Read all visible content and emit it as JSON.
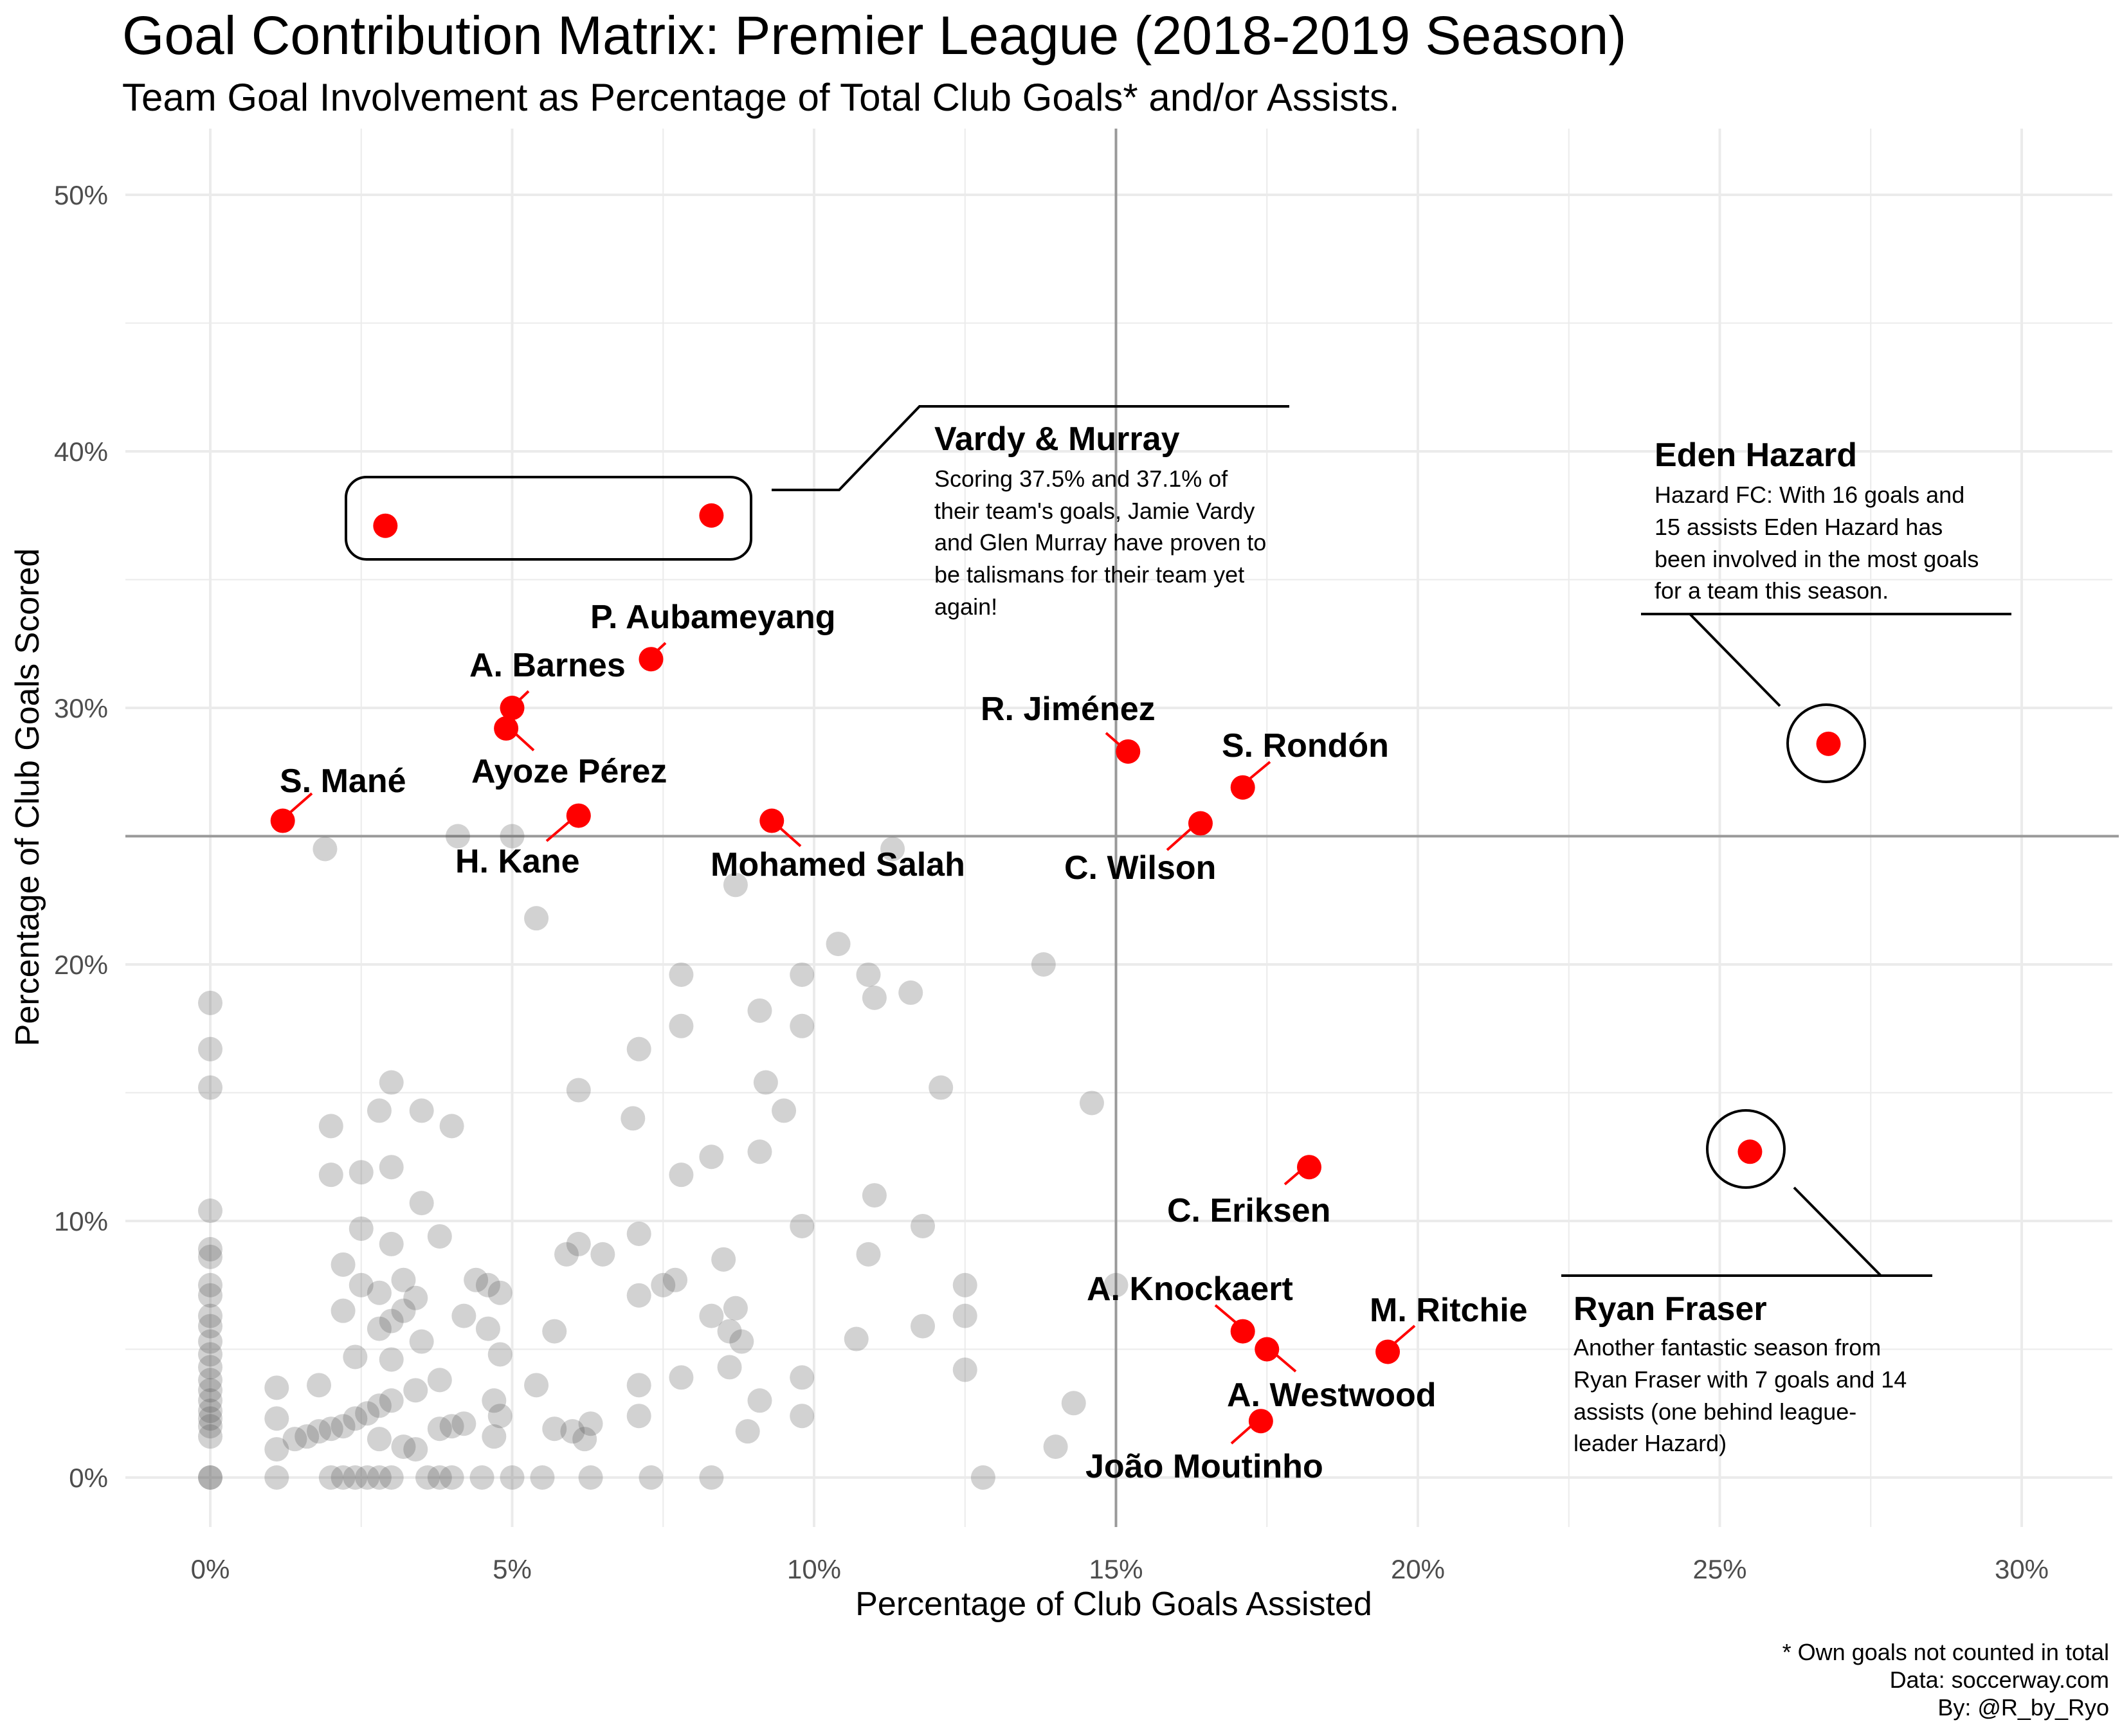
{
  "title": "Goal Contribution Matrix: Premier League (2018-2019 Season)",
  "subtitle": "Team Goal Involvement as Percentage of Total Club Goals* and/or Assists.",
  "caption": [
    "* Own goals not counted in total",
    "Data: soccerway.com",
    "By: @R_by_Ryo"
  ],
  "colors": {
    "highlight": "#ff0000",
    "background_points": "#4d4d4d",
    "grid": "#ebebeb",
    "reference_line": "#999999"
  },
  "chart_data": {
    "type": "scatter",
    "xlabel": "Percentage of Club Goals Assisted",
    "ylabel": "Percentage of Club Goals Scored",
    "xlim": [
      0,
      30
    ],
    "ylim": [
      0,
      50
    ],
    "x_ticks": [
      "0%",
      "5%",
      "10%",
      "15%",
      "20%",
      "25%",
      "30%"
    ],
    "y_ticks": [
      "0%",
      "10%",
      "20%",
      "30%",
      "40%",
      "50%"
    ],
    "reference_lines": {
      "x": 15,
      "y": 25
    },
    "grid": true,
    "legend": "none",
    "highlighted_players": [
      {
        "name": "S. Mané",
        "x": 1.2,
        "y": 25.6
      },
      {
        "name": "A. Barnes",
        "x": 5.0,
        "y": 30.0
      },
      {
        "name": "Ayoze Pérez",
        "x": 4.9,
        "y": 29.2
      },
      {
        "name": "P. Aubameyang",
        "x": 7.3,
        "y": 31.9
      },
      {
        "name": "H. Kane",
        "x": 6.1,
        "y": 25.8
      },
      {
        "name": "Mohamed Salah",
        "x": 9.3,
        "y": 25.6
      },
      {
        "name": "R. Jiménez",
        "x": 15.2,
        "y": 28.3
      },
      {
        "name": "S. Rondón",
        "x": 17.1,
        "y": 26.9
      },
      {
        "name": "C. Wilson",
        "x": 16.4,
        "y": 25.5
      },
      {
        "name": "C. Eriksen",
        "x": 18.2,
        "y": 12.1
      },
      {
        "name": "A. Knockaert",
        "x": 17.1,
        "y": 5.7
      },
      {
        "name": "A. Westwood",
        "x": 17.5,
        "y": 5.0
      },
      {
        "name": "M. Ritchie",
        "x": 19.5,
        "y": 4.9
      },
      {
        "name": "João Moutinho",
        "x": 17.4,
        "y": 2.2
      },
      {
        "name": "",
        "x": 2.9,
        "y": 37.1
      },
      {
        "name": "",
        "x": 8.3,
        "y": 37.5
      },
      {
        "name": "",
        "x": 26.8,
        "y": 28.6
      },
      {
        "name": "",
        "x": 25.5,
        "y": 12.7
      }
    ],
    "other_players": [
      [
        0,
        18.5
      ],
      [
        0,
        16.7
      ],
      [
        0,
        15.2
      ],
      [
        0,
        10.4
      ],
      [
        0,
        8.9
      ],
      [
        0,
        8.6
      ],
      [
        0,
        7.5
      ],
      [
        0,
        7.1
      ],
      [
        0,
        6.3
      ],
      [
        0,
        5.9
      ],
      [
        0,
        5.3
      ],
      [
        0,
        4.8
      ],
      [
        0,
        4.3
      ],
      [
        0,
        3.8
      ],
      [
        0,
        3.4
      ],
      [
        0,
        3.0
      ],
      [
        0,
        2.6
      ],
      [
        0,
        2.3
      ],
      [
        0,
        2.0
      ],
      [
        0,
        1.6
      ],
      [
        0,
        0
      ],
      [
        0,
        0
      ],
      [
        1.1,
        3.5
      ],
      [
        1.1,
        2.3
      ],
      [
        1.1,
        1.1
      ],
      [
        1.1,
        0
      ],
      [
        1.4,
        1.5
      ],
      [
        1.6,
        1.6
      ],
      [
        1.8,
        3.6
      ],
      [
        1.8,
        1.8
      ],
      [
        1.9,
        24.5
      ],
      [
        2.0,
        13.7
      ],
      [
        2.0,
        11.8
      ],
      [
        2.0,
        1.9
      ],
      [
        2.0,
        0
      ],
      [
        2.2,
        8.3
      ],
      [
        2.2,
        6.5
      ],
      [
        2.2,
        2.0
      ],
      [
        2.2,
        0
      ],
      [
        2.4,
        4.7
      ],
      [
        2.4,
        2.3
      ],
      [
        2.4,
        0
      ],
      [
        2.5,
        11.9
      ],
      [
        2.5,
        9.7
      ],
      [
        2.5,
        7.5
      ],
      [
        2.6,
        2.5
      ],
      [
        2.6,
        0
      ],
      [
        2.8,
        14.3
      ],
      [
        2.8,
        7.2
      ],
      [
        2.8,
        5.8
      ],
      [
        2.8,
        2.8
      ],
      [
        2.8,
        1.5
      ],
      [
        2.8,
        0
      ],
      [
        3.0,
        15.4
      ],
      [
        3.0,
        12.1
      ],
      [
        3.0,
        9.1
      ],
      [
        3.0,
        6.1
      ],
      [
        3.0,
        4.6
      ],
      [
        3.0,
        3.0
      ],
      [
        3.0,
        0
      ],
      [
        3.2,
        7.7
      ],
      [
        3.2,
        6.5
      ],
      [
        3.2,
        1.2
      ],
      [
        3.4,
        7.0
      ],
      [
        3.4,
        3.4
      ],
      [
        3.4,
        1.1
      ],
      [
        3.5,
        14.3
      ],
      [
        3.5,
        10.7
      ],
      [
        3.5,
        5.3
      ],
      [
        3.6,
        0
      ],
      [
        3.8,
        9.4
      ],
      [
        3.8,
        3.8
      ],
      [
        3.8,
        1.9
      ],
      [
        3.8,
        0
      ],
      [
        4.0,
        13.7
      ],
      [
        4.0,
        2.0
      ],
      [
        4.0,
        0
      ],
      [
        4.1,
        25.0
      ],
      [
        4.2,
        6.3
      ],
      [
        4.2,
        2.1
      ],
      [
        4.4,
        7.7
      ],
      [
        4.5,
        0
      ],
      [
        4.6,
        7.5
      ],
      [
        4.6,
        5.8
      ],
      [
        4.7,
        3.0
      ],
      [
        4.7,
        1.6
      ],
      [
        4.8,
        7.2
      ],
      [
        4.8,
        4.8
      ],
      [
        4.8,
        2.4
      ],
      [
        5.0,
        25.0
      ],
      [
        5.0,
        0
      ],
      [
        5.4,
        21.8
      ],
      [
        5.4,
        3.6
      ],
      [
        5.5,
        0
      ],
      [
        5.7,
        5.7
      ],
      [
        5.7,
        1.9
      ],
      [
        5.9,
        8.7
      ],
      [
        6.0,
        1.8
      ],
      [
        6.1,
        15.1
      ],
      [
        6.1,
        9.1
      ],
      [
        6.2,
        1.5
      ],
      [
        6.3,
        2.1
      ],
      [
        6.3,
        0
      ],
      [
        6.5,
        8.7
      ],
      [
        7.0,
        14.0
      ],
      [
        7.1,
        16.7
      ],
      [
        7.1,
        9.5
      ],
      [
        7.1,
        7.1
      ],
      [
        7.1,
        3.6
      ],
      [
        7.1,
        2.4
      ],
      [
        7.3,
        0
      ],
      [
        7.5,
        7.5
      ],
      [
        7.7,
        7.7
      ],
      [
        7.8,
        19.6
      ],
      [
        7.8,
        17.6
      ],
      [
        7.8,
        11.8
      ],
      [
        7.8,
        3.9
      ],
      [
        8.3,
        12.5
      ],
      [
        8.3,
        6.3
      ],
      [
        8.3,
        0
      ],
      [
        8.5,
        8.5
      ],
      [
        8.6,
        4.3
      ],
      [
        8.6,
        5.7
      ],
      [
        8.7,
        23.1
      ],
      [
        8.7,
        6.6
      ],
      [
        8.8,
        5.3
      ],
      [
        9.1,
        18.2
      ],
      [
        9.1,
        12.7
      ],
      [
        9.1,
        3.0
      ],
      [
        9.2,
        15.4
      ],
      [
        8.9,
        1.8
      ],
      [
        9.5,
        14.3
      ],
      [
        9.8,
        19.6
      ],
      [
        9.8,
        17.6
      ],
      [
        9.8,
        9.8
      ],
      [
        9.8,
        3.9
      ],
      [
        9.8,
        2.4
      ],
      [
        10.4,
        20.8
      ],
      [
        10.7,
        5.4
      ],
      [
        10.9,
        19.6
      ],
      [
        11.0,
        18.7
      ],
      [
        10.9,
        8.7
      ],
      [
        11.0,
        11.0
      ],
      [
        11.3,
        24.5
      ],
      [
        11.6,
        18.9
      ],
      [
        11.8,
        5.9
      ],
      [
        11.8,
        9.8
      ],
      [
        12.1,
        15.2
      ],
      [
        12.5,
        7.5
      ],
      [
        12.5,
        6.3
      ],
      [
        12.5,
        4.2
      ],
      [
        12.8,
        0
      ],
      [
        13.8,
        20.0
      ],
      [
        14.0,
        1.2
      ],
      [
        14.3,
        2.9
      ],
      [
        14.6,
        14.6
      ],
      [
        15.0,
        7.5
      ]
    ]
  },
  "annotations": {
    "vardy_murray": {
      "title": "Vardy & Murray",
      "lines": [
        "Scoring 37.5% and 37.1% of",
        "their team's goals, Jamie Vardy",
        "and Glen Murray have proven to",
        "be talismans for their team yet",
        "again!"
      ]
    },
    "hazard": {
      "title": "Eden Hazard",
      "lines": [
        "Hazard FC: With 16 goals and",
        "15 assists Eden Hazard has",
        "been involved in the most goals",
        "for a team this season."
      ]
    },
    "fraser": {
      "title": "Ryan Fraser",
      "lines": [
        "Another fantastic season from",
        "Ryan Fraser with 7 goals and 14",
        "assists (one behind league-",
        "leader Hazard)"
      ]
    }
  }
}
